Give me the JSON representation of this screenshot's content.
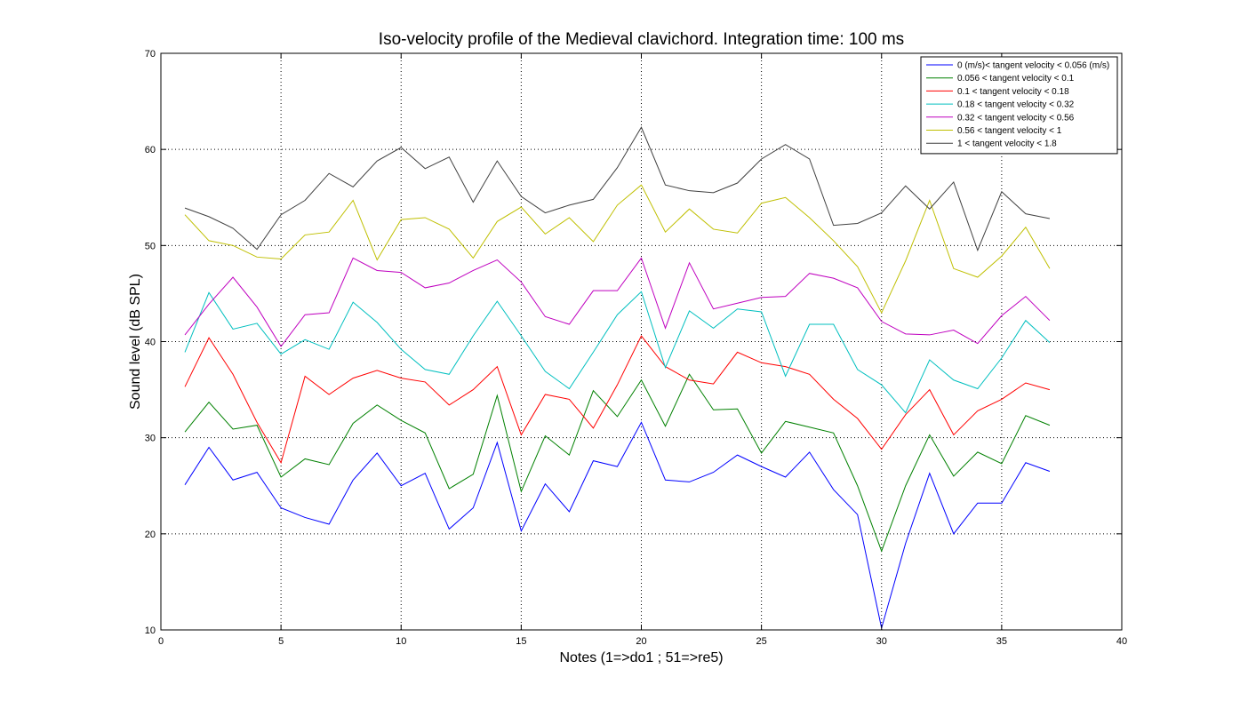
{
  "chart_data": {
    "type": "line",
    "title": "Iso-velocity profile of the Medieval clavichord. Integration time: 100 ms",
    "xlabel": "Notes (1=>do1 ; 51=>re5)",
    "ylabel": "Sound level (dB SPL)",
    "xlim": [
      0,
      40
    ],
    "ylim": [
      10,
      70
    ],
    "xticks": [
      0,
      5,
      10,
      15,
      20,
      25,
      30,
      35,
      40
    ],
    "yticks": [
      10,
      20,
      30,
      40,
      50,
      60,
      70
    ],
    "grid": true,
    "legend_position": "top-right",
    "x": [
      1,
      2,
      3,
      4,
      5,
      6,
      7,
      8,
      9,
      10,
      11,
      12,
      13,
      14,
      15,
      16,
      17,
      18,
      19,
      20,
      21,
      22,
      23,
      24,
      25,
      26,
      27,
      28,
      29,
      30,
      31,
      32,
      33,
      34,
      35,
      36,
      37
    ],
    "series": [
      {
        "name": "0 (m/s)< tangent velocity < 0.056 (m/s)",
        "color": "#0000ff",
        "values": [
          25.1,
          29.0,
          25.6,
          26.4,
          22.7,
          21.7,
          21.0,
          25.6,
          28.4,
          25.0,
          26.3,
          20.5,
          22.7,
          29.5,
          20.3,
          25.2,
          22.3,
          27.6,
          27.0,
          31.6,
          25.6,
          25.4,
          26.4,
          28.2,
          27.0,
          25.9,
          28.5,
          24.6,
          22.0,
          10.2,
          19.0,
          26.3,
          20.0,
          23.2,
          23.2,
          27.4,
          26.5
        ]
      },
      {
        "name": "0.056 < tangent velocity < 0.1",
        "color": "#008000",
        "values": [
          30.6,
          33.7,
          30.9,
          31.3,
          25.9,
          27.8,
          27.2,
          31.5,
          33.4,
          31.8,
          30.5,
          24.7,
          26.2,
          34.4,
          24.4,
          30.2,
          28.2,
          34.9,
          32.2,
          36.0,
          31.2,
          36.6,
          32.9,
          33.0,
          28.4,
          31.7,
          31.1,
          30.5,
          25.0,
          18.2,
          25.0,
          30.3,
          26.0,
          28.5,
          27.3,
          32.3,
          31.3
        ]
      },
      {
        "name": "0.1 < tangent velocity < 0.18",
        "color": "#ff0000",
        "values": [
          35.3,
          40.4,
          36.6,
          31.6,
          27.4,
          36.4,
          34.5,
          36.2,
          37.0,
          36.2,
          35.8,
          33.4,
          35.0,
          37.4,
          30.3,
          34.5,
          34.0,
          31.0,
          35.5,
          40.6,
          37.4,
          36.0,
          35.6,
          38.9,
          37.8,
          37.4,
          36.6,
          34.0,
          32.0,
          28.8,
          32.4,
          35.0,
          30.3,
          32.8,
          34.0,
          35.7,
          35.0
        ]
      },
      {
        "name": "0.18 < tangent velocity < 0.32",
        "color": "#00bfbf",
        "values": [
          38.9,
          45.1,
          41.3,
          41.9,
          38.7,
          40.2,
          39.2,
          44.1,
          42.0,
          39.2,
          37.1,
          36.6,
          40.6,
          44.2,
          40.6,
          36.9,
          35.1,
          38.9,
          42.8,
          45.2,
          37.3,
          43.2,
          41.4,
          43.4,
          43.1,
          36.4,
          41.8,
          41.8,
          37.1,
          35.5,
          32.6,
          38.1,
          36.0,
          35.1,
          38.3,
          42.2,
          39.9
        ]
      },
      {
        "name": "0.32 < tangent velocity < 0.56",
        "color": "#bf00bf",
        "values": [
          40.7,
          43.9,
          46.7,
          43.6,
          39.5,
          42.8,
          43.0,
          48.7,
          47.4,
          47.2,
          45.6,
          46.1,
          47.4,
          48.5,
          46.2,
          42.6,
          41.8,
          45.3,
          45.3,
          48.7,
          41.4,
          48.2,
          43.4,
          44.0,
          44.6,
          44.7,
          47.1,
          46.6,
          45.6,
          42.1,
          40.8,
          40.7,
          41.2,
          39.8,
          42.7,
          44.7,
          42.2
        ]
      },
      {
        "name": "0.56 < tangent velocity < 1",
        "color": "#bfbf00",
        "values": [
          53.2,
          50.5,
          50.0,
          48.8,
          48.6,
          51.1,
          51.4,
          54.7,
          48.5,
          52.7,
          52.9,
          51.7,
          48.7,
          52.5,
          54.0,
          51.2,
          52.9,
          50.4,
          54.2,
          56.3,
          51.4,
          53.8,
          51.7,
          51.3,
          54.4,
          55.0,
          52.9,
          50.5,
          47.8,
          43.0,
          48.4,
          54.7,
          47.6,
          46.7,
          48.9,
          51.9,
          47.6
        ]
      },
      {
        "name": "1 < tangent velocity < 1.8",
        "color": "#404040",
        "values": [
          53.9,
          53.0,
          51.8,
          49.6,
          53.2,
          54.7,
          57.5,
          56.1,
          58.8,
          60.2,
          58.0,
          59.2,
          54.5,
          58.8,
          55.1,
          53.4,
          54.2,
          54.8,
          58.1,
          62.3,
          56.3,
          55.7,
          55.5,
          56.5,
          59.0,
          60.5,
          59.0,
          52.1,
          52.3,
          53.4,
          56.2,
          53.8,
          56.6,
          49.5,
          55.6,
          53.3,
          52.8
        ]
      }
    ]
  }
}
